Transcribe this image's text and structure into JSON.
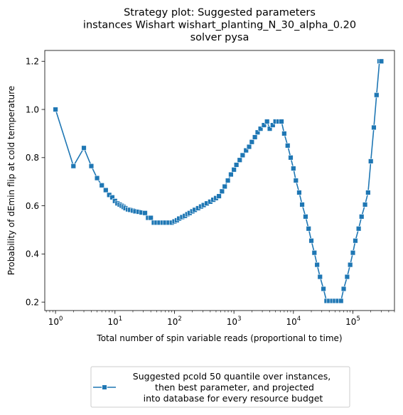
{
  "chart_data": {
    "type": "line",
    "title_lines": [
      "Strategy plot: Suggested parameters",
      "instances Wishart wishart_planting_N_30_alpha_0.20",
      "solver pysa"
    ],
    "xlabel": "Total number of spin variable reads (proportional to time)",
    "ylabel": "Probability of dEmin flip at cold temperature",
    "x_scale": "log",
    "xlim": [
      0.66,
      500000
    ],
    "ylim": [
      0.165,
      1.245
    ],
    "x_ticks": [
      {
        "value": 1,
        "base": "10",
        "exp": "0"
      },
      {
        "value": 10,
        "base": "10",
        "exp": "1"
      },
      {
        "value": 100,
        "base": "10",
        "exp": "2"
      },
      {
        "value": 1000,
        "base": "10",
        "exp": "3"
      },
      {
        "value": 10000,
        "base": "10",
        "exp": "4"
      },
      {
        "value": 100000,
        "base": "10",
        "exp": "5"
      }
    ],
    "y_ticks": [
      {
        "value": 0.2,
        "label": "0.2"
      },
      {
        "value": 0.4,
        "label": "0.4"
      },
      {
        "value": 0.6,
        "label": "0.6"
      },
      {
        "value": 0.8,
        "label": "0.8"
      },
      {
        "value": 1.0,
        "label": "1.0"
      },
      {
        "value": 1.2,
        "label": "1.2"
      }
    ],
    "grid": false,
    "legend_position": "below",
    "color": "#1f77b4",
    "series": [
      {
        "name": "Suggested pcold 50 quantile over instances,\n  then best parameter, and projected\n into database for every resource budget",
        "marker": "square",
        "x": [
          1,
          2,
          3,
          4,
          5,
          6,
          7,
          8,
          9,
          10,
          11,
          12,
          13,
          14,
          15,
          16.5,
          18,
          20,
          22,
          25,
          28,
          32,
          36,
          40,
          45,
          50,
          56,
          63,
          70,
          80,
          90,
          100,
          110,
          120,
          135,
          150,
          165,
          180,
          200,
          220,
          250,
          280,
          310,
          350,
          400,
          450,
          500,
          560,
          630,
          700,
          790,
          890,
          1000,
          1100,
          1250,
          1400,
          1600,
          1800,
          2000,
          2250,
          2500,
          2800,
          3200,
          3600,
          4000,
          4500,
          5000,
          5600,
          6300,
          7000,
          8000,
          9000,
          10000,
          11000,
          12500,
          14000,
          16000,
          18000,
          20000,
          22500,
          25000,
          28000,
          32000,
          36000,
          40000,
          45000,
          50000,
          56000,
          63000,
          70000,
          80000,
          90000,
          100000,
          110000,
          125000,
          140000,
          160000,
          180000,
          200000,
          225000,
          250000,
          280000,
          300000
        ],
        "y": [
          1.0,
          0.765,
          0.84,
          0.765,
          0.715,
          0.685,
          0.665,
          0.645,
          0.635,
          0.62,
          0.61,
          0.605,
          0.6,
          0.595,
          0.59,
          0.585,
          0.583,
          0.58,
          0.577,
          0.575,
          0.572,
          0.57,
          0.55,
          0.55,
          0.53,
          0.53,
          0.53,
          0.53,
          0.53,
          0.53,
          0.53,
          0.535,
          0.54,
          0.547,
          0.553,
          0.558,
          0.565,
          0.57,
          0.577,
          0.583,
          0.59,
          0.597,
          0.603,
          0.61,
          0.617,
          0.625,
          0.632,
          0.64,
          0.66,
          0.68,
          0.705,
          0.73,
          0.75,
          0.77,
          0.79,
          0.81,
          0.83,
          0.845,
          0.865,
          0.885,
          0.905,
          0.92,
          0.935,
          0.95,
          0.92,
          0.935,
          0.95,
          0.95,
          0.95,
          0.9,
          0.85,
          0.8,
          0.755,
          0.705,
          0.655,
          0.605,
          0.555,
          0.505,
          0.455,
          0.405,
          0.355,
          0.305,
          0.255,
          0.205,
          0.205,
          0.205,
          0.205,
          0.205,
          0.205,
          0.255,
          0.305,
          0.355,
          0.405,
          0.455,
          0.505,
          0.555,
          0.605,
          0.655,
          0.785,
          0.925,
          1.06,
          1.2,
          1.2
        ]
      }
    ]
  }
}
